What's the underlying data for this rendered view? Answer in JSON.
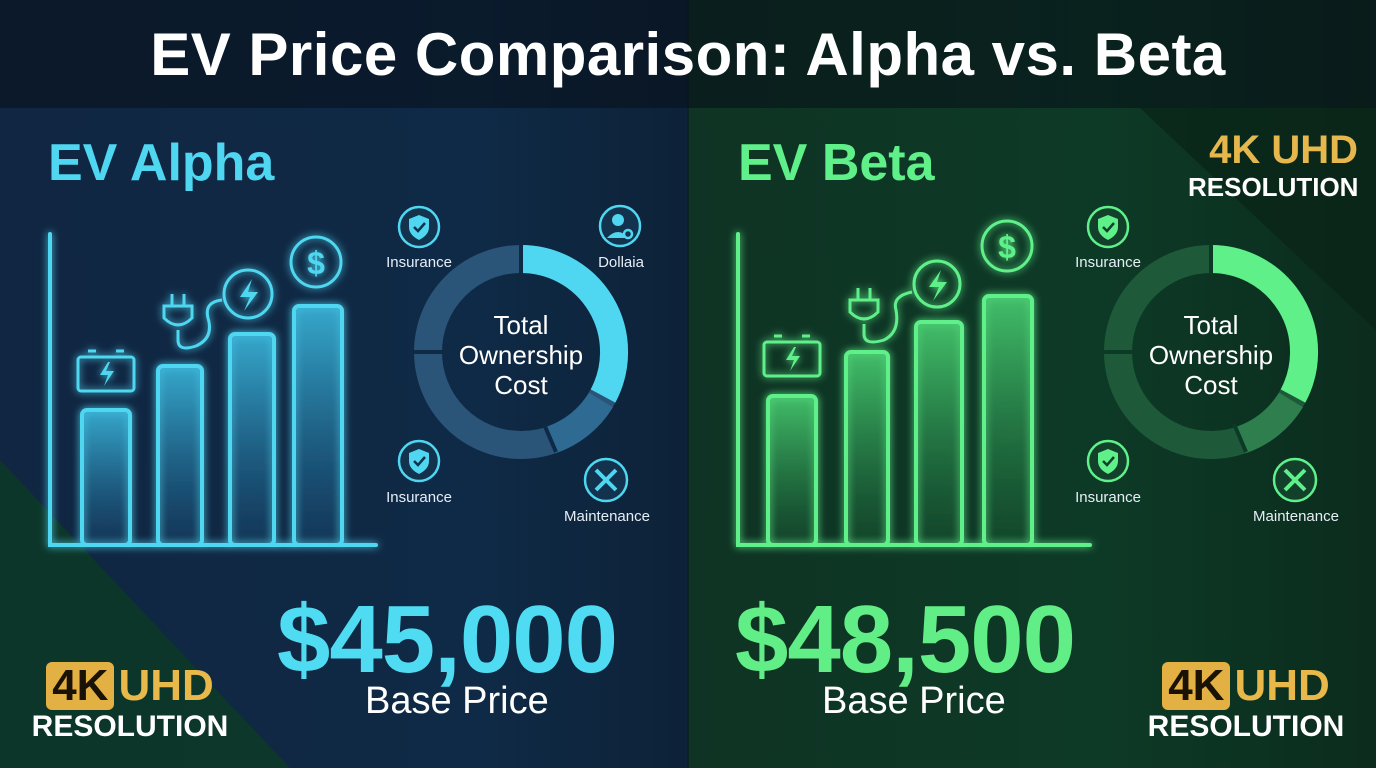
{
  "title": "EV Price Comparison: Alpha vs. Beta",
  "alpha": {
    "name": "EV Alpha",
    "price": "$45,000",
    "price_label": "Base Price",
    "donut_center": [
      "Total",
      "Ownership",
      "Cost"
    ],
    "cost_labels": {
      "top_left": "Insurance",
      "top_right": "Dollaia",
      "bottom_left": "Insurance",
      "bottom_right": "Maintenance"
    },
    "color": "#4fd6f0"
  },
  "beta": {
    "name": "EV Beta",
    "price": "$48,500",
    "price_label": "Base Price",
    "donut_center": [
      "Total",
      "Ownership",
      "Cost"
    ],
    "cost_labels": {
      "top_left": "Insurance",
      "bottom_left": "Insurance",
      "bottom_right": "Maintenance"
    },
    "color": "#5ff08a"
  },
  "badges": {
    "left": {
      "big_a": "4K",
      "big_b": "UHD",
      "small": "RESOLUTION"
    },
    "right": {
      "big_a": "4K",
      "big_b": "UHD",
      "small": "RESOLUTION"
    },
    "top": {
      "big": "4K UHD",
      "small": "RESOLUTION"
    }
  },
  "icons": [
    "battery-icon",
    "plug-icon",
    "lightning-icon",
    "dollar-icon",
    "shield-icon",
    "user-icon",
    "tools-icon"
  ],
  "accent_gold": "#e2b043"
}
